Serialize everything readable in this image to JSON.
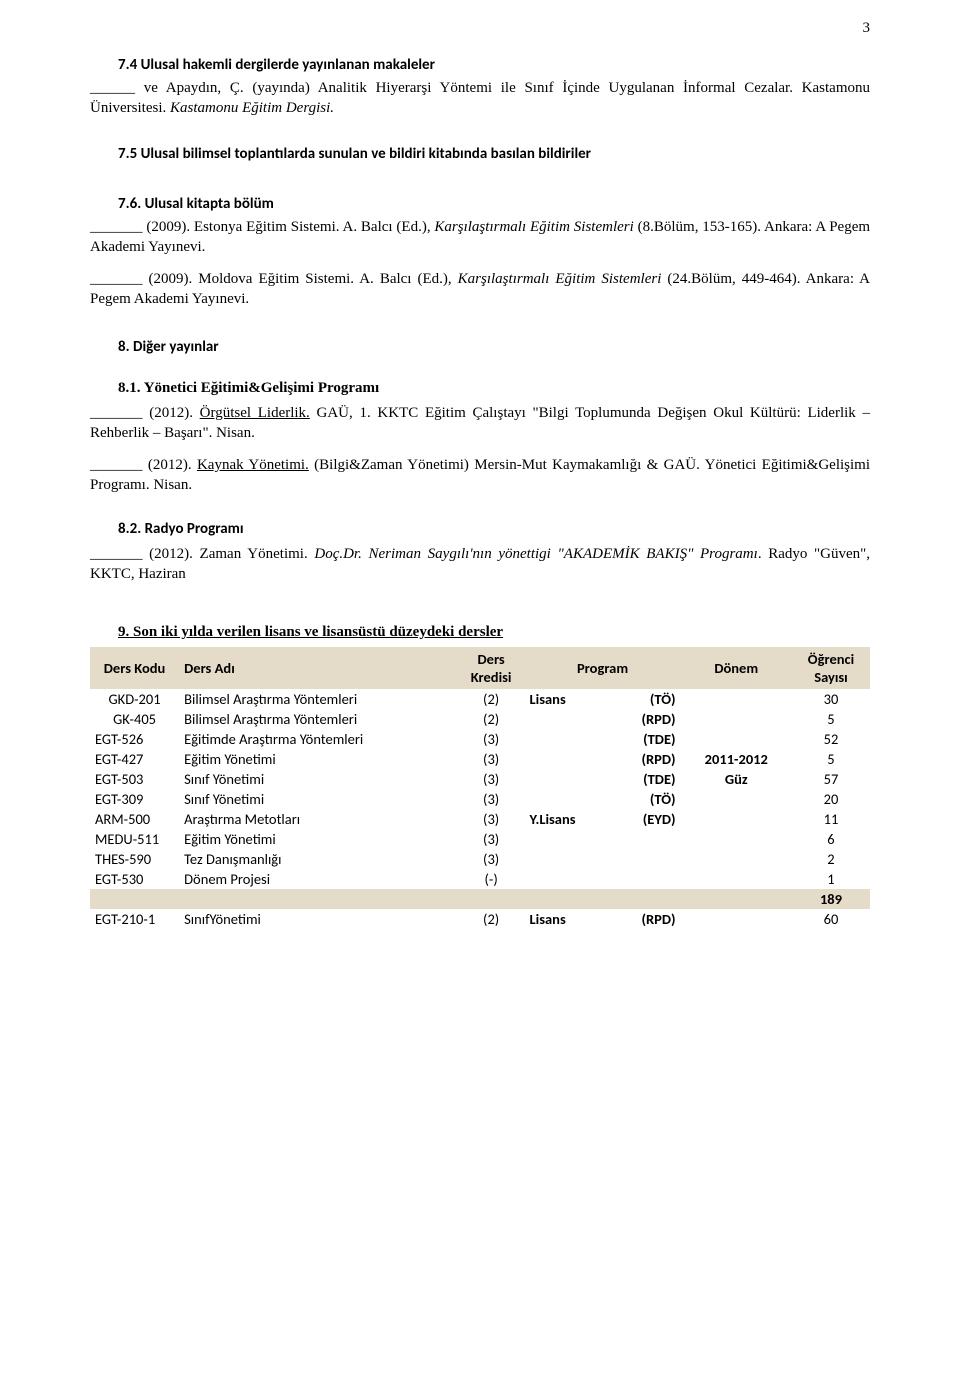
{
  "page_number": "3",
  "sections": {
    "s7_4": {
      "heading": "7.4 Ulusal hakemli dergilerde yayınlanan makaleler",
      "para_html": "ve Apaydın, Ç. (yayında) Analitik Hiyerarşi Yöntemi ile Sınıf İçinde Uygulanan İnformal Cezalar. Kastamonu Üniversitesi. <span class=\"italic\">Kastamonu Eğitim Dergisi.</span>"
    },
    "s7_5": {
      "heading": "7.5 Ulusal bilimsel toplantılarda sunulan ve bildiri kitabında basılan bildiriler"
    },
    "s7_6": {
      "heading": "7.6. Ulusal kitapta bölüm",
      "para1_html": "(2009). Estonya Eğitim Sistemi. A. Balcı (Ed.), <span class=\"italic\">Karşılaştırmalı Eğitim Sistemleri</span> (8.Bölüm, 153-165). Ankara: A Pegem Akademi Yayınevi.",
      "para2_html": "(2009). Moldova Eğitim Sistemi. A. Balcı (Ed.), <span class=\"italic\">Karşılaştırmalı Eğitim Sistemleri</span> (24.Bölüm, 449-464). Ankara: A Pegem Akademi Yayınevi."
    },
    "s8": {
      "heading": "8.   Diğer yayınlar"
    },
    "s8_1": {
      "heading": "8.1. Yönetici Eğitimi&Gelişimi Programı",
      "para1_html": "(2012). <span class=\"under\">Örgütsel Liderlik.</span> GAÜ, 1. KKTC Eğitim Çalıştayı \"Bilgi Toplumunda Değişen Okul Kültürü: Liderlik – Rehberlik – Başarı\". Nisan.",
      "para2_html": "(2012). <span class=\"under\">Kaynak Yönetimi.</span> (Bilgi&Zaman Yönetimi) Mersin-Mut Kaymakamlığı & GAÜ. Yönetici Eğitimi&Gelişimi Programı. Nisan."
    },
    "s8_2": {
      "heading": "8.2. Radyo Programı",
      "para_html": "(2012). Zaman Yönetimi. <span class=\"italic\">Doç.Dr. Neriman Saygılı'nın yönettigi \"AKADEMİK BAKIŞ\" Programı</span>. Radyo \"Güven\", KKTC, Haziran"
    },
    "s9": {
      "heading": "9. Son iki yılda verilen lisans ve lisansüstü düzeydeki dersler"
    }
  },
  "table": {
    "headers": {
      "code": "Ders Kodu",
      "name": "Ders Adı",
      "credit": "Ders Kredisi",
      "program": "Program",
      "term": "Dönem",
      "count": "Öğrenci Sayısı"
    },
    "rows": [
      {
        "code": "GKD-201",
        "name": "Bilimsel Araştırma Yöntemleri",
        "credit": "(2)",
        "prog1": "Lisans",
        "prog2": "(TÖ)",
        "term": "",
        "count": "30"
      },
      {
        "code": "GK-405",
        "name": "Bilimsel Araştırma Yöntemleri",
        "credit": "(2)",
        "prog1": "",
        "prog2": "(RPD)",
        "term": "",
        "count": "5"
      },
      {
        "code": "EGT-526",
        "name": "Eğitimde Araştırma Yöntemleri",
        "credit": "(3)",
        "prog1": "",
        "prog2": "(TDE)",
        "term": "",
        "count": "52"
      },
      {
        "code": "EGT-427",
        "name": "Eğitim Yönetimi",
        "credit": "(3)",
        "prog1": "",
        "prog2": "(RPD)",
        "term": "2011-2012",
        "count": "5"
      },
      {
        "code": "EGT-503",
        "name": "Sınıf Yönetimi",
        "credit": "(3)",
        "prog1": "",
        "prog2": "(TDE)",
        "term": "Güz",
        "count": "57"
      },
      {
        "code": "EGT-309",
        "name": "Sınıf Yönetimi",
        "credit": "(3)",
        "prog1": "",
        "prog2": "(TÖ)",
        "term": "",
        "count": "20"
      },
      {
        "code": "ARM-500",
        "name": "Araştırma Metotları",
        "credit": "(3)",
        "prog1": "Y.Lisans",
        "prog2": "(EYD)",
        "term": "",
        "count": "11"
      },
      {
        "code": "MEDU-511",
        "name": "Eğitim Yönetimi",
        "credit": "(3)",
        "prog1": "",
        "prog2": "",
        "term": "",
        "count": "6"
      },
      {
        "code": "THES-590",
        "name": "Tez Danışmanlığı",
        "credit": "(3)",
        "prog1": "",
        "prog2": "",
        "term": "",
        "count": "2"
      },
      {
        "code": "EGT-530",
        "name": "Dönem Projesi",
        "credit": "(-)",
        "prog1": "",
        "prog2": "",
        "term": "",
        "count": "1"
      }
    ],
    "subtotal": "189",
    "last_row": {
      "code": "EGT-210-1",
      "name": "SınıfYönetimi",
      "credit": "(2)",
      "prog1": "Lisans",
      "prog2": "(RPD)",
      "term": "",
      "count": "60"
    },
    "colors": {
      "header_bg": "#e5dbc9",
      "text": "#000000"
    }
  }
}
